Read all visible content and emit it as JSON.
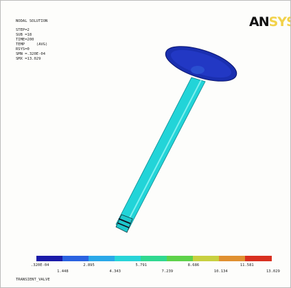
{
  "header": {
    "title": "NODAL SOLUTION",
    "lines": [
      "STEP=2",
      "SUB =18",
      "TIME=200",
      "TEMP     (AVG)",
      "RSYS=0",
      "SMN =.320E-04",
      "SMX =13.029"
    ]
  },
  "logo": "ANSYS",
  "legend": {
    "upper_labels": [
      ".320E-04",
      "2.895",
      "5.791",
      "8.686",
      "11.581"
    ],
    "lower_labels": [
      "1.448",
      "4.343",
      "7.239",
      "10.134",
      "13.029"
    ]
  },
  "footer": "TRANSIENT_VALVE"
}
